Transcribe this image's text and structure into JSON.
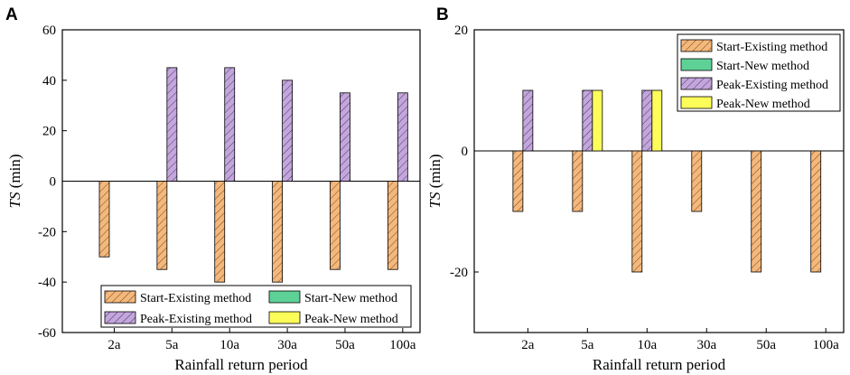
{
  "chart_data": [
    {
      "panel": "A",
      "type": "bar",
      "categories": [
        "2a",
        "5a",
        "10a",
        "30a",
        "50a",
        "100a"
      ],
      "series": [
        {
          "name": "Start-Existing method",
          "values": [
            -30,
            -35,
            -40,
            -40,
            -35,
            -35
          ],
          "color": "#f5b87b",
          "pattern": "hatch"
        },
        {
          "name": "Start-New method",
          "values": [
            0,
            0,
            0,
            0,
            0,
            0
          ],
          "color": "#5ed196",
          "pattern": "solid"
        },
        {
          "name": "Peak-Existing method",
          "values": [
            0,
            45,
            45,
            40,
            35,
            35
          ],
          "color": "#c3a6dc",
          "pattern": "hatch"
        },
        {
          "name": "Peak-New method",
          "values": [
            0,
            0,
            0,
            0,
            0,
            0
          ],
          "color": "#fdfd5a",
          "pattern": "solid"
        }
      ],
      "xlabel": "Rainfall return period",
      "ylabel_italic": "TS",
      "ylabel_unit": " (min)",
      "ylim": [
        -60,
        60
      ],
      "yticks": [
        -60,
        -40,
        -20,
        0,
        20,
        40,
        60
      ],
      "legend": "bottom-right"
    },
    {
      "panel": "B",
      "type": "bar",
      "categories": [
        "2a",
        "5a",
        "10a",
        "30a",
        "50a",
        "100a"
      ],
      "series": [
        {
          "name": "Start-Existing method",
          "values": [
            -10,
            -10,
            -20,
            -10,
            -20,
            -20
          ],
          "color": "#f5b87b",
          "pattern": "hatch"
        },
        {
          "name": "Start-New method",
          "values": [
            0,
            0,
            0,
            0,
            0,
            0
          ],
          "color": "#5ed196",
          "pattern": "solid"
        },
        {
          "name": "Peak-Existing method",
          "values": [
            10,
            10,
            10,
            0,
            0,
            0
          ],
          "color": "#c3a6dc",
          "pattern": "hatch"
        },
        {
          "name": "Peak-New method",
          "values": [
            0,
            10,
            10,
            0,
            0,
            0
          ],
          "color": "#fdfd5a",
          "pattern": "solid"
        }
      ],
      "xlabel": "Rainfall return period",
      "ylabel_italic": "TS",
      "ylabel_unit": " (min)",
      "ylim": [
        -30,
        20
      ],
      "yticks": [
        -20,
        0,
        20
      ],
      "legend": "top-right"
    }
  ]
}
